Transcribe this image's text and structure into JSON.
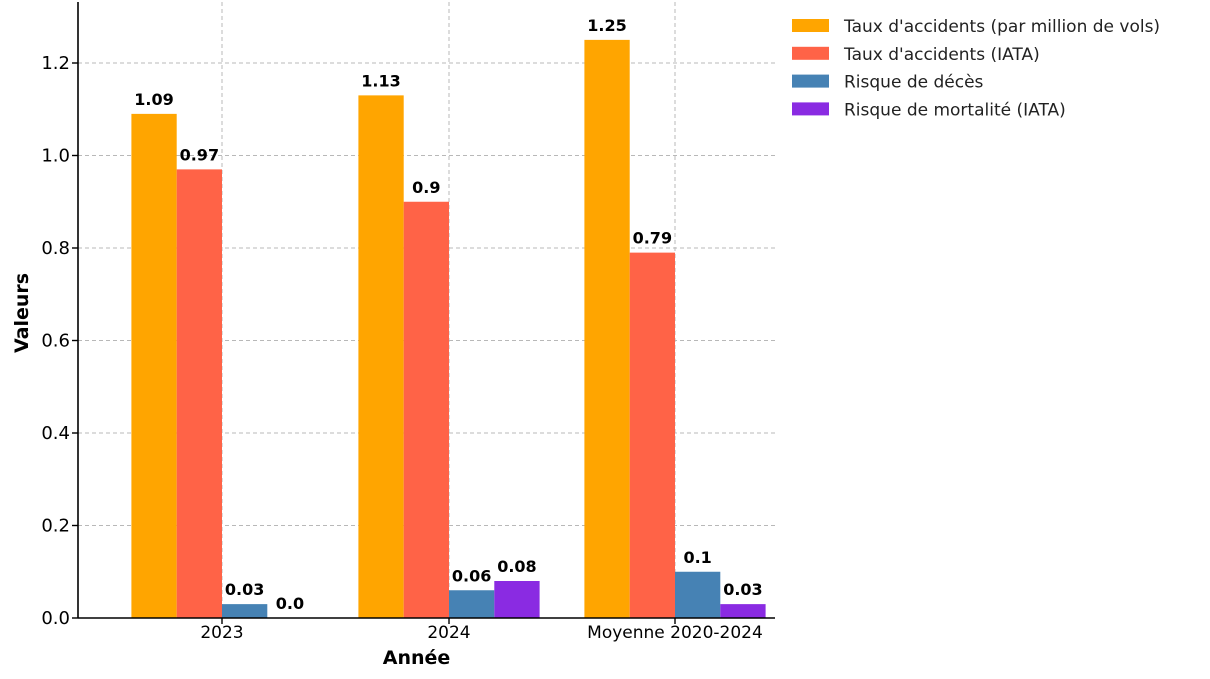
{
  "chart_data": {
    "type": "bar",
    "categories": [
      "2023",
      "2024",
      "Moyenne 2020-2024"
    ],
    "series": [
      {
        "name": "Taux d'accidents (par million de vols)",
        "color": "#FFA500",
        "values": [
          1.09,
          1.13,
          1.25
        ],
        "labels": [
          "1.09",
          "1.13",
          "1.25"
        ]
      },
      {
        "name": "Taux d'accidents (IATA)",
        "color": "#FF6347",
        "values": [
          0.97,
          0.9,
          0.79
        ],
        "labels": [
          "0.97",
          "0.9",
          "0.79"
        ]
      },
      {
        "name": "Risque de décès",
        "color": "#4682B4",
        "values": [
          0.03,
          0.06,
          0.1
        ],
        "labels": [
          "0.03",
          "0.06",
          "0.1"
        ]
      },
      {
        "name": "Risque de mortalité (IATA)",
        "color": "#8A2BE2",
        "values": [
          0.0,
          0.08,
          0.03
        ],
        "labels": [
          "0.0",
          "0.08",
          "0.03"
        ]
      }
    ],
    "xlabel": "Année",
    "ylabel": "Valeurs",
    "ylim": [
      0,
      1.3
    ],
    "yticks": [
      0.0,
      0.2,
      0.4,
      0.6,
      0.8,
      1.0,
      1.2
    ],
    "ytick_labels": [
      "0.0",
      "0.2",
      "0.4",
      "0.6",
      "0.8",
      "1.0",
      "1.2"
    ],
    "grid": true,
    "legend_position": "top-right outside"
  }
}
